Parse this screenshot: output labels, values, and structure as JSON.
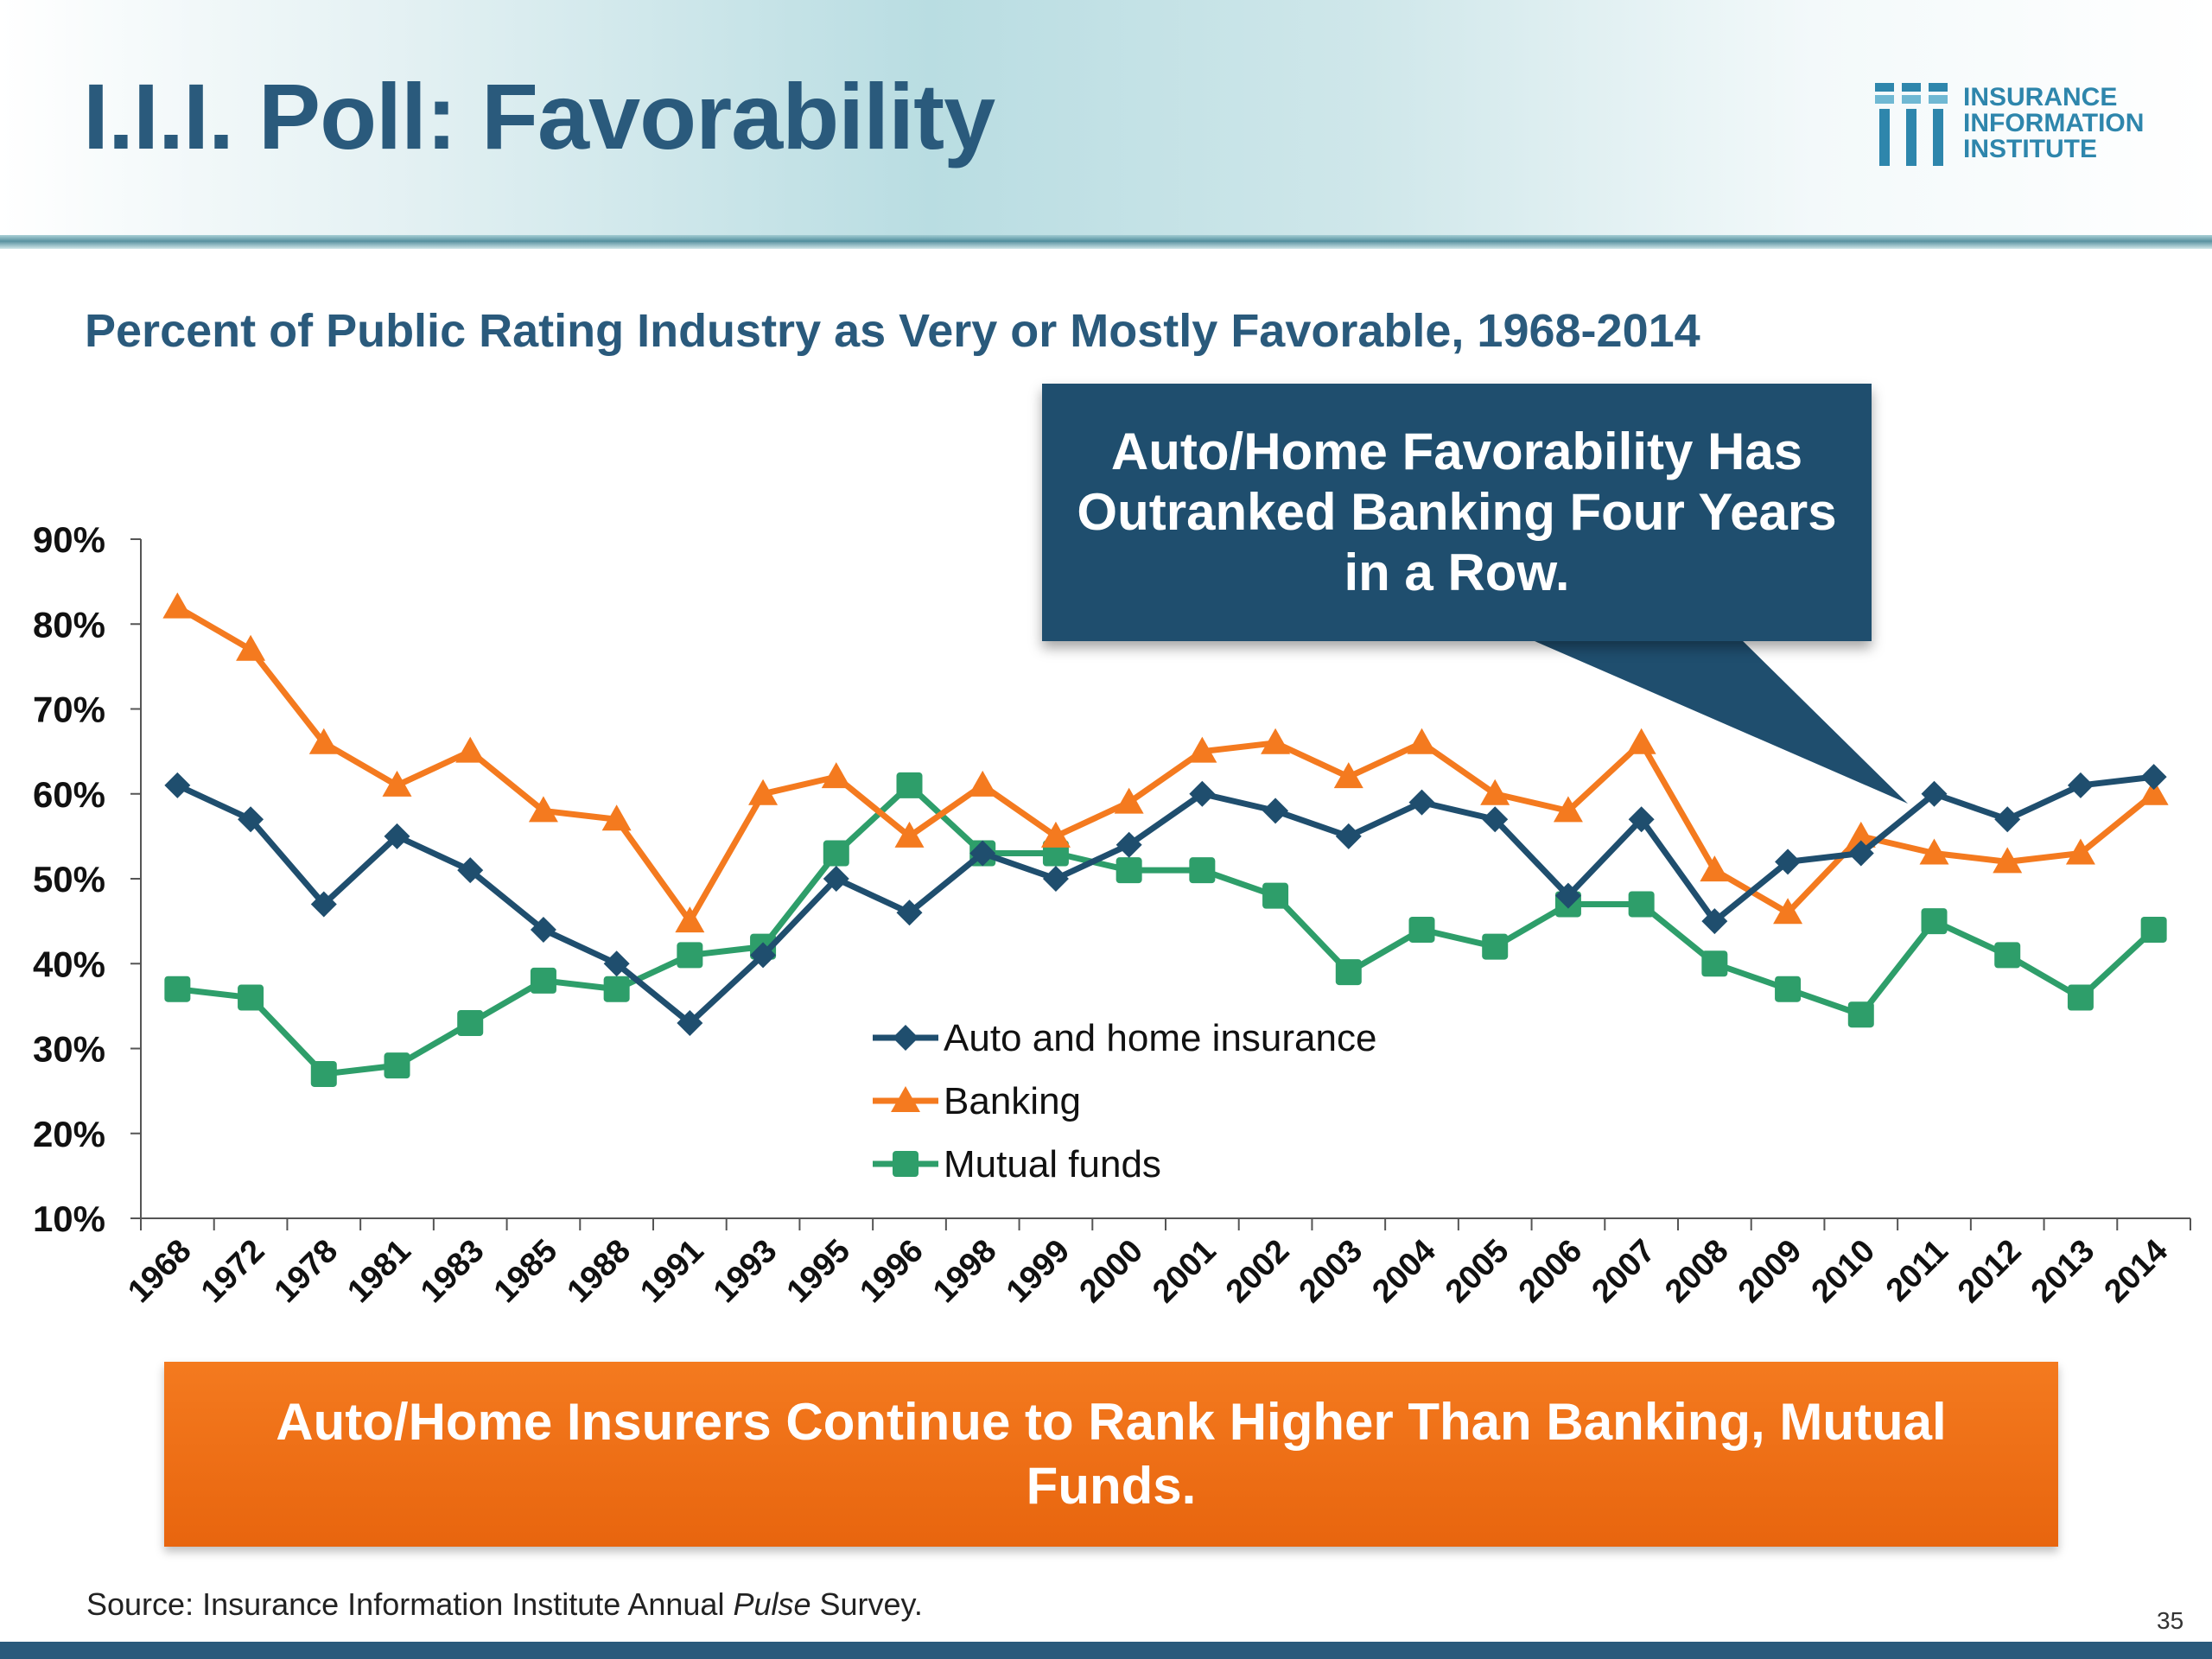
{
  "title": "I.I.I. Poll: Favorability",
  "logo": {
    "lines": [
      "INSURANCE",
      "INFORMATION",
      "INSTITUTE"
    ]
  },
  "subtitle": "Percent of Public Rating Industry as Very or Mostly Favorable, 1968-2014",
  "callout": "Auto/Home Favorability Has Outranked Banking Four Years in a Row.",
  "banner": "Auto/Home Insurers Continue to Rank Higher Than Banking, Mutual Funds.",
  "source": {
    "prefix": "Source: Insurance Information Institute Annual ",
    "italic": "Pulse",
    "suffix": " Survey."
  },
  "page_number": "35",
  "colors": {
    "title": "#2a5a7c",
    "auto_home": "#1f4e6e",
    "banking": "#f47a1f",
    "mutual_funds": "#2e9e6a",
    "callout_bg": "#1f4e6e",
    "banner_bg": "#ee6b12"
  },
  "chart_data": {
    "type": "line",
    "title": "Percent of Public Rating Industry as Very or Mostly Favorable, 1968-2014",
    "categories": [
      "1968",
      "1972",
      "1978",
      "1981",
      "1983",
      "1985",
      "1988",
      "1991",
      "1993",
      "1995",
      "1996",
      "1998",
      "1999",
      "2000",
      "2001",
      "2002",
      "2003",
      "2004",
      "2005",
      "2006",
      "2007",
      "2008",
      "2009",
      "2010",
      "2011",
      "2012",
      "2013",
      "2014"
    ],
    "y_ticks": [
      "10%",
      "20%",
      "30%",
      "40%",
      "50%",
      "60%",
      "70%",
      "80%",
      "90%"
    ],
    "ylim": [
      10,
      90
    ],
    "y_unit": "%",
    "grid": false,
    "legend_position": "center",
    "series": [
      {
        "name": "Auto and home insurance",
        "color": "#1f4e6e",
        "marker": "diamond",
        "values": [
          61,
          57,
          47,
          55,
          51,
          44,
          40,
          33,
          41,
          50,
          46,
          53,
          50,
          54,
          60,
          58,
          55,
          59,
          57,
          48,
          57,
          45,
          52,
          53,
          60,
          57,
          61,
          62
        ]
      },
      {
        "name": "Banking",
        "color": "#f47a1f",
        "marker": "triangle",
        "values": [
          82,
          77,
          66,
          61,
          65,
          58,
          57,
          45,
          60,
          62,
          55,
          61,
          55,
          59,
          65,
          66,
          62,
          66,
          60,
          58,
          66,
          51,
          46,
          55,
          53,
          52,
          53,
          60
        ]
      },
      {
        "name": "Mutual funds",
        "color": "#2e9e6a",
        "marker": "square",
        "values": [
          37,
          36,
          27,
          28,
          33,
          38,
          37,
          41,
          42,
          53,
          61,
          53,
          53,
          51,
          51,
          48,
          39,
          44,
          42,
          47,
          47,
          40,
          37,
          34,
          45,
          41,
          36,
          44
        ]
      }
    ]
  }
}
